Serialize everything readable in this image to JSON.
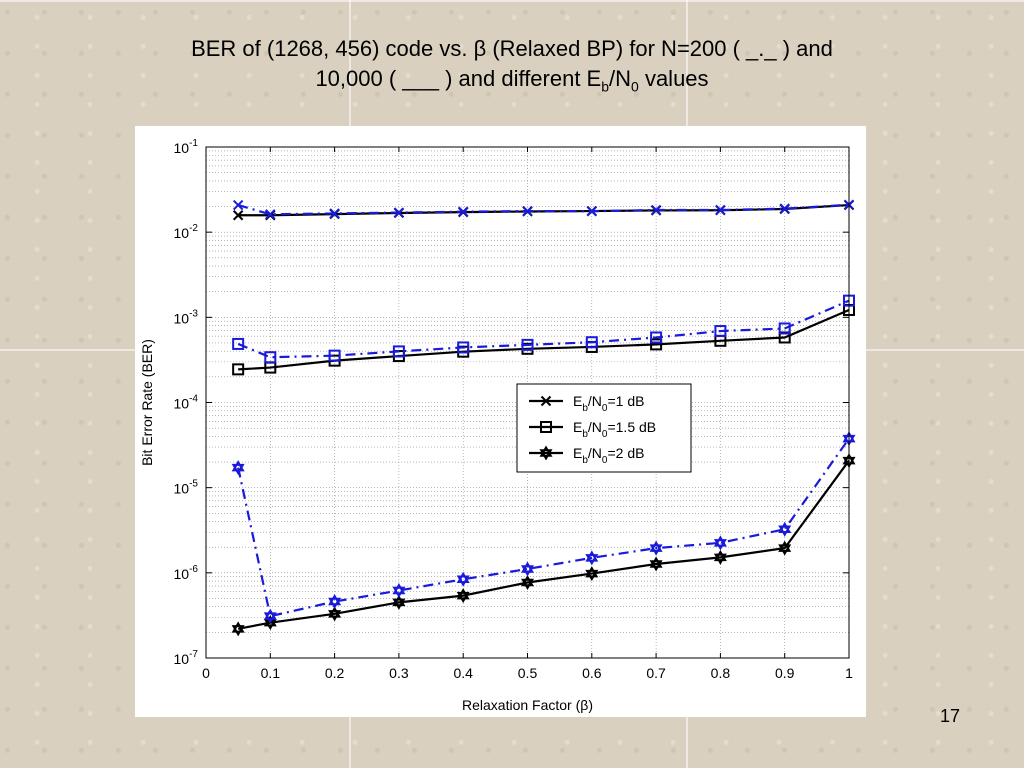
{
  "slide": {
    "title_part1": "BER of (1268, 456) code vs. β (Relaxed BP) for N=200 (  _._ ) and",
    "title_part2_pre": "10,000 ( ___ ) and different E",
    "title_sub_b": "b",
    "title_slash_n": "/N",
    "title_sub_0": "0",
    "title_part2_post": " values",
    "page_number": "17"
  },
  "chart_data": {
    "type": "line",
    "title": "",
    "xlabel": "Relaxation Factor (β)",
    "ylabel": "Bit Error Rate (BER)",
    "x_scale": "linear",
    "y_scale": "log",
    "xlim": [
      0,
      1
    ],
    "ylim": [
      1e-07,
      0.1
    ],
    "x_ticks": [
      "0",
      "0.1",
      "0.2",
      "0.3",
      "0.4",
      "0.5",
      "0.6",
      "0.7",
      "0.8",
      "0.9",
      "1"
    ],
    "y_ticks": [
      {
        "base": "10",
        "exp": "-1"
      },
      {
        "base": "10",
        "exp": "-2"
      },
      {
        "base": "10",
        "exp": "-3"
      },
      {
        "base": "10",
        "exp": "-4"
      },
      {
        "base": "10",
        "exp": "-5"
      },
      {
        "base": "10",
        "exp": "-6"
      },
      {
        "base": "10",
        "exp": "-7"
      }
    ],
    "grid": "on (dotted, major and minor)",
    "legend_placement": "center-right",
    "legend": [
      {
        "pre": "E",
        "sub1": "b",
        "mid": "/N",
        "sub2": "0",
        "post": "=1 dB",
        "marker": "x"
      },
      {
        "pre": "E",
        "sub1": "b",
        "mid": "/N",
        "sub2": "0",
        "post": "=1.5 dB",
        "marker": "square"
      },
      {
        "pre": "E",
        "sub1": "b",
        "mid": "/N",
        "sub2": "0",
        "post": "=2 dB",
        "marker": "hexagram"
      }
    ],
    "x": [
      0.05,
      0.1,
      0.2,
      0.3,
      0.4,
      0.5,
      0.6,
      0.7,
      0.8,
      0.9,
      1.0
    ],
    "series": [
      {
        "Eb_N0_dB": 1,
        "N": 10000,
        "line": "solid",
        "color": "#000000",
        "marker": "x",
        "values": [
          0.0158,
          0.0158,
          0.0163,
          0.0168,
          0.0172,
          0.0175,
          0.0177,
          0.018,
          0.0181,
          0.0187,
          0.0208
        ]
      },
      {
        "Eb_N0_dB": 1,
        "N": 200,
        "line": "dashdot",
        "color": "#1a1adc",
        "marker": "x",
        "values": [
          0.0208,
          0.0162,
          0.0166,
          0.017,
          0.0174,
          0.0177,
          0.0176,
          0.0182,
          0.0182,
          0.0189,
          0.021
        ]
      },
      {
        "Eb_N0_dB": 1.5,
        "N": 10000,
        "line": "solid",
        "color": "#000000",
        "marker": "square",
        "values": [
          0.000245,
          0.000257,
          0.00031,
          0.000351,
          0.000395,
          0.000427,
          0.000449,
          0.000481,
          0.00053,
          0.00058,
          0.00122
        ]
      },
      {
        "Eb_N0_dB": 1.5,
        "N": 200,
        "line": "dashdot",
        "color": "#1a1adc",
        "marker": "square",
        "values": [
          0.000487,
          0.00034,
          0.000355,
          0.000398,
          0.000443,
          0.000475,
          0.00051,
          0.00058,
          0.00069,
          0.00074,
          0.00157
        ]
      },
      {
        "Eb_N0_dB": 2,
        "N": 10000,
        "line": "solid",
        "color": "#000000",
        "marker": "hexagram",
        "values": [
          2.2e-07,
          2.6e-07,
          3.3e-07,
          4.5e-07,
          5.4e-07,
          7.7e-07,
          9.8e-07,
          1.27e-06,
          1.52e-06,
          1.95e-06,
          2.08e-05
        ]
      },
      {
        "Eb_N0_dB": 2,
        "N": 200,
        "line": "dashdot",
        "color": "#1a1adc",
        "marker": "hexagram",
        "values": [
          1.72e-05,
          3.1e-07,
          4.6e-07,
          6.2e-07,
          8.4e-07,
          1.11e-06,
          1.5e-06,
          1.95e-06,
          2.25e-06,
          3.25e-06,
          3.77e-05
        ]
      }
    ]
  }
}
